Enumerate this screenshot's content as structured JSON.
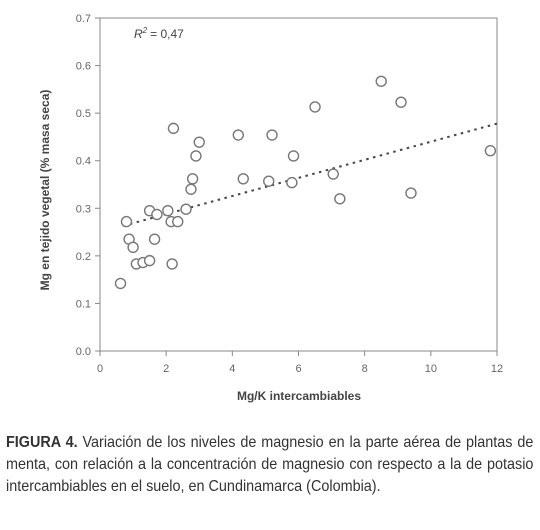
{
  "chart_data": {
    "type": "scatter",
    "xlabel": "Mg/K intercambiables",
    "ylabel": "Mg en tejido vegetal (% masa seca)",
    "xlim": [
      0,
      12
    ],
    "ylim": [
      0,
      0.7
    ],
    "x_ticks": [
      "0",
      "2",
      "4",
      "6",
      "8",
      "10",
      "12"
    ],
    "y_ticks": [
      "0.0",
      "0.1",
      "0.2",
      "0.3",
      "0.4",
      "0.5",
      "0.6",
      "0.7"
    ],
    "annotation": {
      "r2_symbol": "R",
      "r2_exp": "2",
      "r2_value": "= 0,47"
    },
    "trendline": {
      "style": "dotted",
      "x": [
        0.7,
        12.0
      ],
      "y": [
        0.263,
        0.478
      ]
    },
    "points": [
      {
        "x": 0.62,
        "y": 0.142
      },
      {
        "x": 0.8,
        "y": 0.272
      },
      {
        "x": 0.88,
        "y": 0.235
      },
      {
        "x": 1.0,
        "y": 0.218
      },
      {
        "x": 1.1,
        "y": 0.183
      },
      {
        "x": 1.3,
        "y": 0.186
      },
      {
        "x": 1.5,
        "y": 0.295
      },
      {
        "x": 1.5,
        "y": 0.19
      },
      {
        "x": 1.65,
        "y": 0.235
      },
      {
        "x": 1.72,
        "y": 0.287
      },
      {
        "x": 2.05,
        "y": 0.295
      },
      {
        "x": 2.15,
        "y": 0.272
      },
      {
        "x": 2.18,
        "y": 0.183
      },
      {
        "x": 2.22,
        "y": 0.468
      },
      {
        "x": 2.35,
        "y": 0.272
      },
      {
        "x": 2.6,
        "y": 0.298
      },
      {
        "x": 2.75,
        "y": 0.34
      },
      {
        "x": 2.8,
        "y": 0.362
      },
      {
        "x": 2.9,
        "y": 0.41
      },
      {
        "x": 3.0,
        "y": 0.439
      },
      {
        "x": 4.18,
        "y": 0.454
      },
      {
        "x": 4.33,
        "y": 0.362
      },
      {
        "x": 5.1,
        "y": 0.357
      },
      {
        "x": 5.2,
        "y": 0.454
      },
      {
        "x": 5.8,
        "y": 0.354
      },
      {
        "x": 5.85,
        "y": 0.41
      },
      {
        "x": 6.5,
        "y": 0.513
      },
      {
        "x": 7.05,
        "y": 0.372
      },
      {
        "x": 7.25,
        "y": 0.32
      },
      {
        "x": 8.5,
        "y": 0.567
      },
      {
        "x": 9.1,
        "y": 0.523
      },
      {
        "x": 9.4,
        "y": 0.332
      },
      {
        "x": 11.8,
        "y": 0.421
      }
    ],
    "colors": {
      "axis": "#888888",
      "marker": "#777777",
      "trend": "#444444"
    }
  },
  "caption": {
    "label": "FIGURA 4.",
    "text": "Variación de los niveles de magnesio en la parte aérea de plantas de menta, con relación a la concentración de  magnesio con respecto a la de potasio intercambiables en el suelo, en Cundinamarca (Colombia)."
  }
}
